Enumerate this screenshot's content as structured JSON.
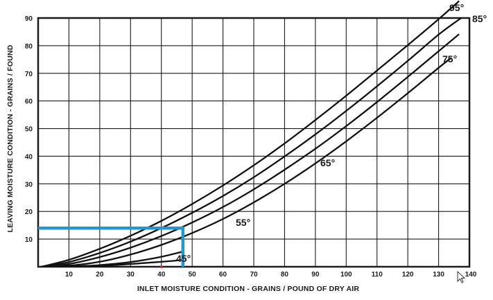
{
  "chart_data": {
    "type": "line",
    "title": "",
    "xlabel": "INLET MOISTURE CONDITION - GRAINS / POUND OF DRY AIR",
    "ylabel": "LEAVING MOISTURE CONDITION - GRAINS / FOUND",
    "xlim": [
      0,
      140
    ],
    "ylim": [
      0,
      90
    ],
    "x_ticks": [
      "10",
      "20",
      "30",
      "40",
      "50",
      "60",
      "70",
      "80",
      "90",
      "100",
      "110",
      "120",
      "130",
      "140"
    ],
    "y_ticks": [
      "10",
      "20",
      "30",
      "40",
      "50",
      "60",
      "70",
      "80",
      "90"
    ],
    "grid": true,
    "legend": "none",
    "series": [
      {
        "name": "45°",
        "x": [
          1,
          10,
          20,
          30,
          40,
          50,
          60,
          70,
          80,
          90,
          100,
          110,
          120,
          130,
          136.5
        ],
        "y": [
          0,
          2.5,
          6.5,
          11.2,
          16.6,
          22.7,
          29.4,
          36.7,
          44.6,
          53.1,
          61.9,
          71.0,
          80.2,
          89.6,
          96
        ]
      },
      {
        "name": "55°",
        "x": [
          1,
          10,
          20,
          30,
          40,
          50,
          60,
          70,
          80,
          90,
          100,
          110,
          120,
          130,
          137.3
        ],
        "y": [
          0,
          1.7,
          5.0,
          9.1,
          14.0,
          19.5,
          25.6,
          32.4,
          39.9,
          47.9,
          56.4,
          65.3,
          74.5,
          84.0,
          90
        ]
      },
      {
        "name": "65°",
        "x": [
          1,
          10,
          20,
          30,
          40,
          50,
          60,
          70,
          80,
          90,
          100,
          110,
          120,
          130,
          136.5
        ],
        "y": [
          0,
          1.0,
          3.5,
          6.9,
          11.1,
          16.0,
          21.6,
          28.0,
          35.1,
          42.7,
          50.9,
          59.6,
          68.7,
          78.0,
          84
        ]
      },
      {
        "name": "75°",
        "x": [
          1,
          10,
          20,
          30,
          40,
          50,
          60,
          70,
          80,
          90,
          100,
          110,
          120,
          130,
          134
        ],
        "y": [
          0,
          0.4,
          1.8,
          4.4,
          7.9,
          12.2,
          17.3,
          23.3,
          30.0,
          37.4,
          45.4,
          53.9,
          62.8,
          72.0,
          75.5
        ]
      },
      {
        "name": "85°",
        "x": [
          1,
          10,
          20,
          30,
          40,
          47
        ],
        "y": [
          0,
          0.1,
          0.6,
          1.7,
          3.6,
          5.5
        ]
      },
      {
        "name": "95°",
        "x": [
          1,
          20,
          40,
          46.5
        ],
        "y": [
          0,
          0.3,
          1.8,
          2.4
        ]
      }
    ],
    "curve_labels": [
      "95°",
      "85°",
      "75°",
      "65°",
      "55°",
      "45°"
    ],
    "annotations": [
      {
        "type": "reference-path",
        "color": "#1a9ad6",
        "points": [
          [
            0,
            14
          ],
          [
            47,
            14
          ],
          [
            47,
            0
          ]
        ]
      }
    ],
    "marker": {
      "x": 40,
      "y": 0,
      "color": "#d62020"
    }
  }
}
